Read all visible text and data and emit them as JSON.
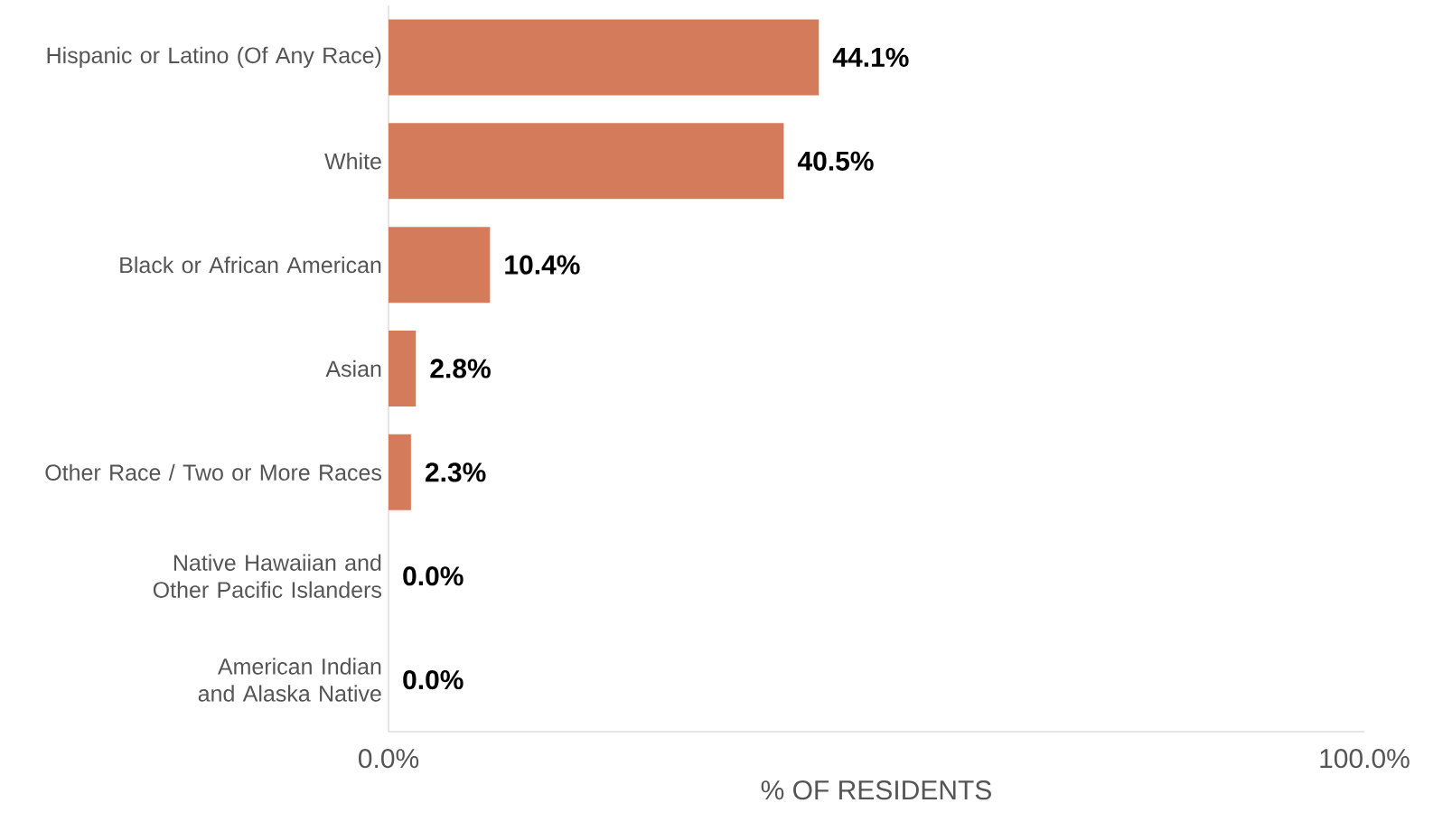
{
  "chart_data": {
    "type": "bar",
    "orientation": "horizontal",
    "xlabel": "% OF RESIDENTS",
    "categories": [
      "Hispanic or Latino (Of Any Race)",
      "White",
      "Black or African American",
      "Asian",
      "Other Race / Two or More Races",
      "Native Hawaiian and Other Pacific Islanders",
      "American Indian and Alaska Native"
    ],
    "values": [
      44.1,
      40.5,
      10.4,
      2.8,
      2.3,
      0.0,
      0.0
    ],
    "value_labels": [
      "44.1%",
      "40.5%",
      "10.4%",
      "2.8%",
      "2.3%",
      "0.0%",
      "0.0%"
    ],
    "color": "#d47b5c",
    "xlim": [
      0,
      100
    ],
    "xticks": [
      {
        "value": 0,
        "label": "0.0%"
      },
      {
        "value": 100,
        "label": "100.0%"
      }
    ],
    "grid": false
  }
}
